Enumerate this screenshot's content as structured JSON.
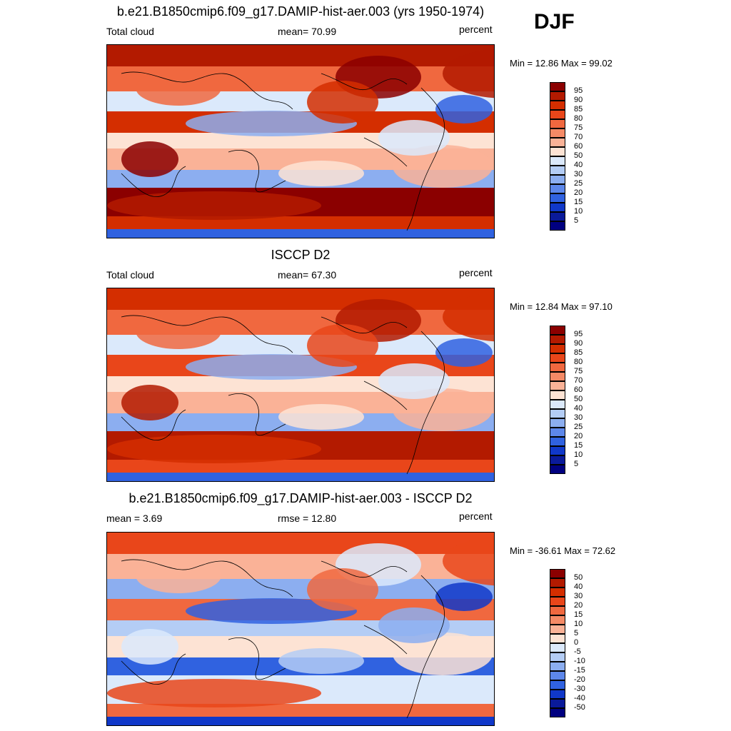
{
  "season": "DJF",
  "panels": [
    {
      "id": "model",
      "title": "b.e21.B1850cmip6.f09_g17.DAMIP-hist-aer.003 (yrs 1950-1974)",
      "left_label": "Total cloud",
      "center_label": "mean=  70.99",
      "right_label": "percent",
      "minmax": "Min =  12.86 Max =  99.02",
      "colorbar_labels": [
        "95",
        "90",
        "85",
        "80",
        "75",
        "70",
        "60",
        "50",
        "40",
        "30",
        "25",
        "20",
        "15",
        "10",
        "5"
      ],
      "colorbar_colors": [
        "#8b0000",
        "#b31a00",
        "#d42e00",
        "#e9461a",
        "#f0683f",
        "#f58a66",
        "#fab297",
        "#fde3d4",
        "#dbe9fb",
        "#b4cdf5",
        "#8caef0",
        "#5d87ea",
        "#3062e0",
        "#1038c9",
        "#0a1a9a",
        "#000080"
      ],
      "field_colors": [
        "#fab297",
        "#f0683f",
        "#d42e00",
        "#b31a00",
        "#8b0000",
        "#fde3d4",
        "#dbe9fb",
        "#8caef0",
        "#3062e0"
      ]
    },
    {
      "id": "obs",
      "title": "ISCCP D2",
      "left_label": "Total cloud",
      "center_label": "mean=  67.30",
      "right_label": "percent",
      "minmax": "Min =  12.84 Max =  97.10",
      "colorbar_labels": [
        "95",
        "90",
        "85",
        "80",
        "75",
        "70",
        "60",
        "50",
        "40",
        "30",
        "25",
        "20",
        "15",
        "10",
        "5"
      ],
      "colorbar_colors": [
        "#8b0000",
        "#b31a00",
        "#d42e00",
        "#e9461a",
        "#f0683f",
        "#f58a66",
        "#fab297",
        "#fde3d4",
        "#dbe9fb",
        "#b4cdf5",
        "#8caef0",
        "#5d87ea",
        "#3062e0",
        "#1038c9",
        "#0a1a9a",
        "#000080"
      ],
      "field_colors": [
        "#fab297",
        "#f0683f",
        "#e9461a",
        "#d42e00",
        "#b31a00",
        "#fde3d4",
        "#dbe9fb",
        "#8caef0",
        "#3062e0"
      ]
    },
    {
      "id": "diff",
      "title": "b.e21.B1850cmip6.f09_g17.DAMIP-hist-aer.003 - ISCCP D2",
      "left_label": "mean =   3.69",
      "center_label": "rmse =  12.80",
      "right_label": "percent",
      "minmax": "Min = -36.61 Max =  72.62",
      "colorbar_labels": [
        "50",
        "40",
        "30",
        "20",
        "15",
        "10",
        "5",
        "0",
        "-5",
        "-10",
        "-15",
        "-20",
        "-30",
        "-40",
        "-50"
      ],
      "colorbar_colors": [
        "#8b0000",
        "#b31a00",
        "#d42e00",
        "#e9461a",
        "#f0683f",
        "#f58a66",
        "#fab297",
        "#fde3d4",
        "#dbe9fb",
        "#b4cdf5",
        "#8caef0",
        "#5d87ea",
        "#3062e0",
        "#1038c9",
        "#0a1a9a",
        "#000080"
      ],
      "field_colors": [
        "#fde3d4",
        "#fab297",
        "#f0683f",
        "#e9461a",
        "#dbe9fb",
        "#b4cdf5",
        "#8caef0",
        "#3062e0",
        "#1038c9"
      ]
    }
  ]
}
